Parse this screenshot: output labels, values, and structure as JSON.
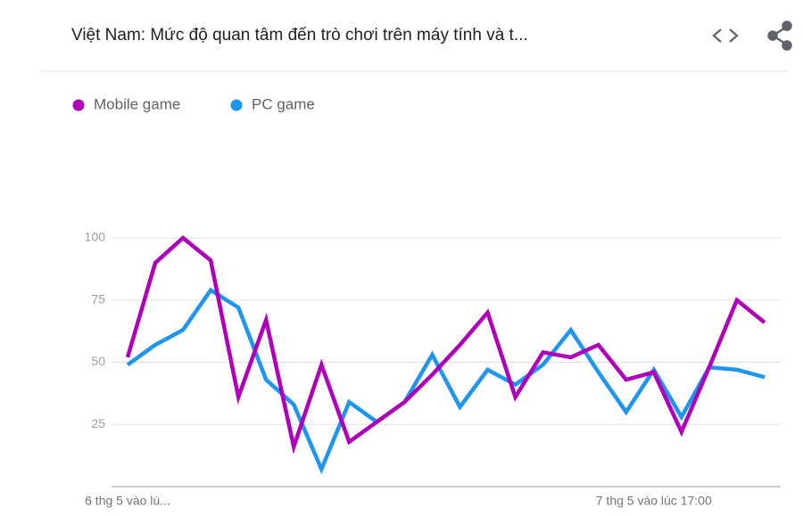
{
  "chart_data": {
    "type": "line",
    "title": "Việt Nam: Mức độ quan tâm đến trò chơi trên máy tính và t...",
    "categories": [
      "6 thg 5 vào lú...",
      null,
      null,
      null,
      null,
      null,
      null,
      null,
      null,
      null,
      null,
      null,
      null,
      null,
      null,
      null,
      null,
      null,
      null,
      "7 thg 5 vào lúc 17:00",
      null,
      null,
      null,
      null
    ],
    "series": [
      {
        "name": "Mobile game",
        "color": "#b000b8",
        "values": [
          52,
          90,
          100,
          91,
          36,
          67,
          16,
          49,
          18,
          26,
          34,
          45,
          57,
          70,
          36,
          54,
          52,
          57,
          43,
          46,
          22,
          48,
          75,
          66
        ]
      },
      {
        "name": "PC game",
        "color": "#1e96f0",
        "values": [
          49,
          57,
          63,
          79,
          72,
          43,
          33,
          7,
          34,
          26,
          34,
          53,
          32,
          47,
          41,
          49,
          63,
          46,
          30,
          47,
          28,
          48,
          47,
          44
        ]
      }
    ],
    "ylim": [
      0,
      100
    ],
    "yticks": [
      25,
      50,
      75,
      100
    ],
    "grid": true
  }
}
